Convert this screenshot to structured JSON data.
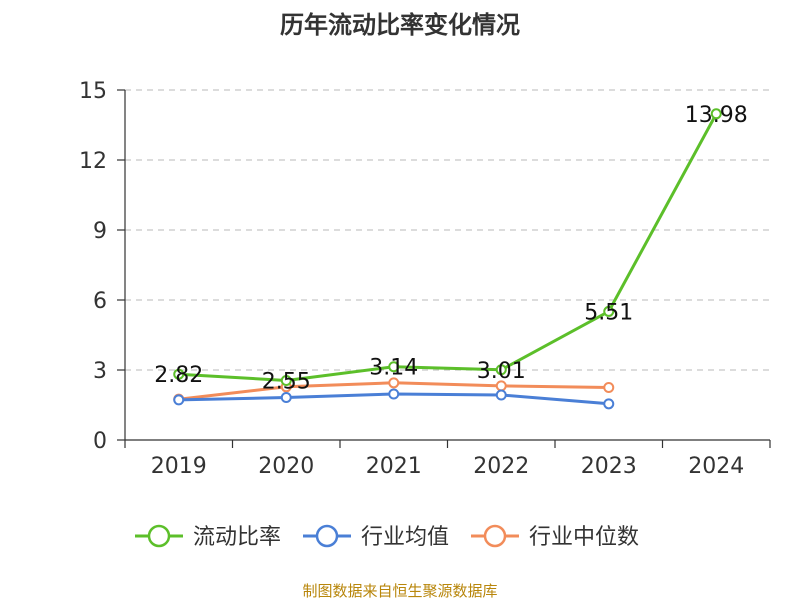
{
  "title": "历年流动比率变化情况",
  "source": "制图数据来自恒生聚源数据库",
  "colors": {
    "axis": "#333333",
    "grid": "#c8c8c8",
    "source": "#b8860b"
  },
  "chart_data": {
    "type": "line",
    "title": "历年流动比率变化情况",
    "categories": [
      "2019",
      "2020",
      "2021",
      "2022",
      "2023",
      "2024"
    ],
    "ylim": [
      0,
      15
    ],
    "yticks": [
      0,
      3,
      6,
      9,
      12,
      15
    ],
    "grid": true,
    "legend_position": "bottom",
    "series": [
      {
        "name": "流动比率",
        "color": "#5cbf2a",
        "values": [
          2.82,
          2.55,
          3.14,
          3.01,
          5.51,
          13.98
        ],
        "labels": [
          "2.82",
          "2.55",
          "3.14",
          "3.01",
          "5.51",
          "13.98"
        ]
      },
      {
        "name": "行业均值",
        "color": "#4a7fd6",
        "values": [
          1.72,
          1.82,
          1.97,
          1.93,
          1.55,
          null
        ]
      },
      {
        "name": "行业中位数",
        "color": "#f28c5a",
        "values": [
          1.75,
          2.28,
          2.45,
          2.32,
          2.25,
          null
        ]
      }
    ]
  }
}
